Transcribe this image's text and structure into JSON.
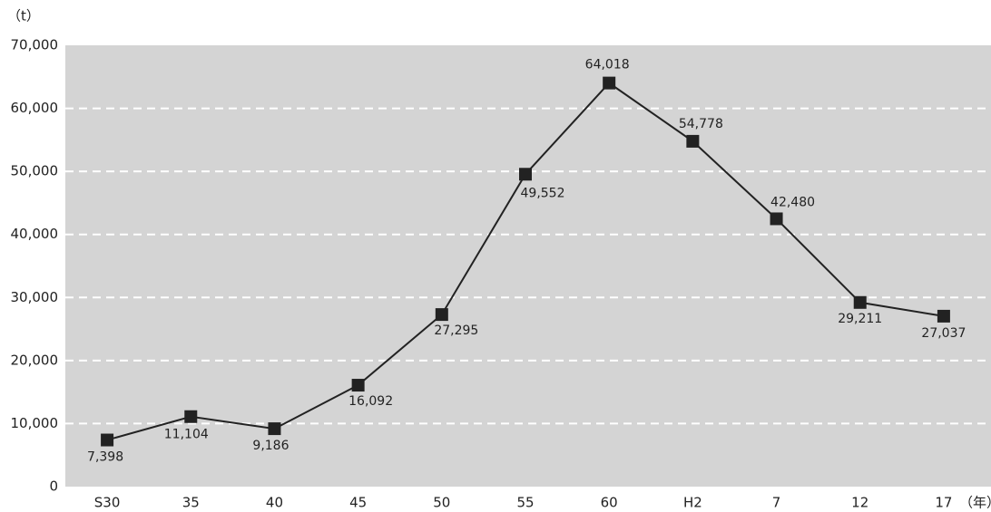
{
  "chart_data": {
    "type": "line",
    "y_label": "（t）",
    "x_label": "（年）",
    "categories": [
      "S30",
      "35",
      "40",
      "45",
      "50",
      "55",
      "60",
      "H2",
      "7",
      "12",
      "17"
    ],
    "values": [
      7398,
      11104,
      9186,
      16092,
      27295,
      49552,
      64018,
      54778,
      42480,
      29211,
      27037
    ],
    "value_labels": [
      "7,398",
      "11,104",
      "9,186",
      "16,092",
      "27,295",
      "49,552",
      "64,018",
      "54,778",
      "42,480",
      "29,211",
      "27,037"
    ],
    "color": "#222222",
    "ylim": [
      0,
      70000
    ],
    "yticks": [
      0,
      {
        "value": 10000,
        "label": "10,000"
      },
      {
        "value": 20000,
        "label": "20,000"
      },
      {
        "value": 30000,
        "label": "30,000"
      },
      {
        "value": 40000,
        "label": "40,000"
      },
      {
        "value": 50000,
        "label": "50,000"
      },
      {
        "value": 60000,
        "label": "60,000"
      },
      {
        "value": 70000,
        "label": "70,000"
      }
    ],
    "grid": true
  }
}
